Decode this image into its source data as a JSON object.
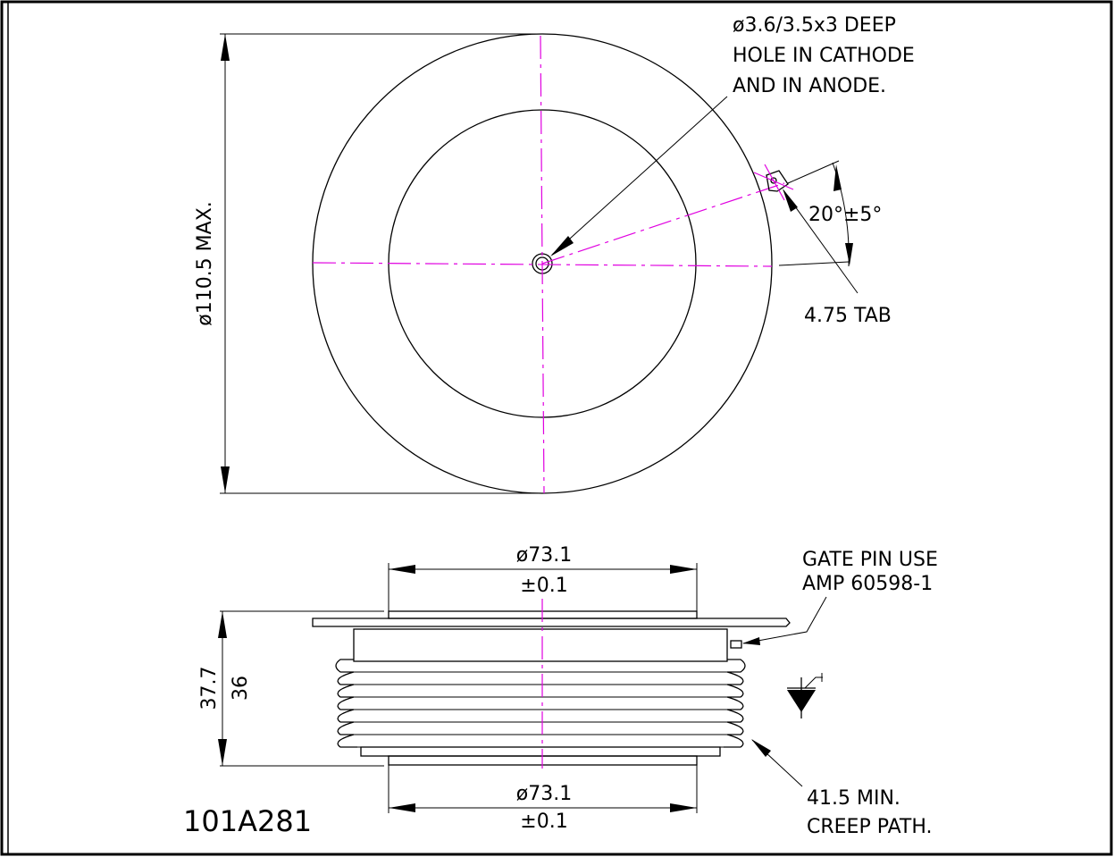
{
  "drawing": {
    "part_number": "101A281",
    "colors": {
      "centerline": "#e000e0",
      "ink": "#000000",
      "background": "#ffffff"
    },
    "top_view": {
      "hole_note": [
        "ø3.6/3.5x3 DEEP",
        "HOLE IN CATHODE",
        "AND IN ANODE."
      ],
      "overall_diameter": "ø110.5 MAX.",
      "tab_angle": "20°±5°",
      "tab_note": "4.75 TAB"
    },
    "side_view": {
      "top_diameter": [
        "ø73.1",
        "±0.1"
      ],
      "bottom_diameter": [
        "ø73.1",
        "±0.1"
      ],
      "overall_height": "37.7",
      "body_height": "36",
      "gate_note": [
        "GATE PIN USE",
        "AMP 60598-1"
      ],
      "creep_note": [
        "41.5 MIN.",
        "CREEP PATH."
      ],
      "symbol": "thyristor-symbol"
    }
  }
}
